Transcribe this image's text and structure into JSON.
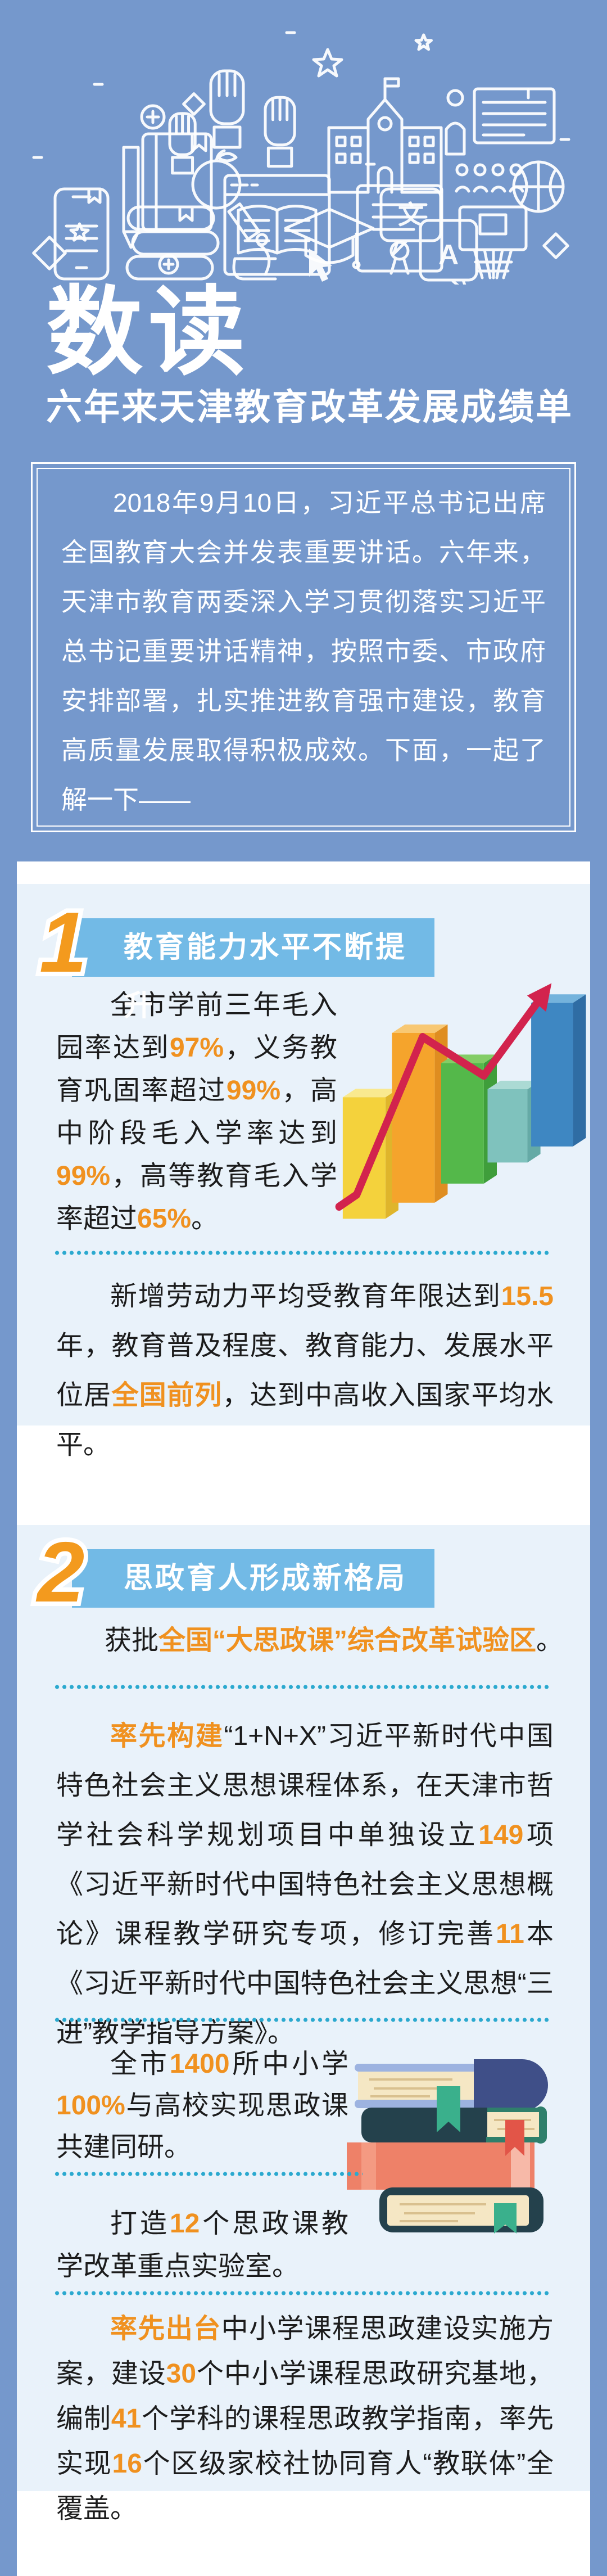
{
  "palette": {
    "banner_blue": "#7598cc",
    "card_blue": "#e9f2fa",
    "header_bar_blue": "#72bae6",
    "accent_orange": "#f0911f",
    "number_orange": "#f39a1e",
    "dot_cyan": "#2ba9cf",
    "arrow_red": "#d2234d",
    "text_dark": "#1c1c1c",
    "white": "#ffffff"
  },
  "banner": {
    "title": "数读",
    "subtitle": "六年来天津教育改革发展成绩单",
    "intro": "2018年9月10日，习近平总书记出席全国教育大会并发表重要讲话。六年来，天津市教育两委深入学习贯彻落实习近平总书记重要讲话精神，按照市委、市政府安排部署，扎实推进教育强市建设，教育高质量发展取得积极成效。下面，一起了解一下——",
    "icons_text": {
      "cjk": "文",
      "latin": "A"
    },
    "icon_names": [
      "raised-hand",
      "raised-hand",
      "raised-hand",
      "star",
      "school-building",
      "person-presentation",
      "audience",
      "plus-circle",
      "diamond",
      "pencil",
      "notebook",
      "apple",
      "browser-open-book",
      "cursor",
      "certificate",
      "smartphone",
      "book-stack",
      "microscope",
      "graduation-cap",
      "chat-bubble-cjk",
      "chat-bubble-latin",
      "basketball",
      "basketball-hoop",
      "sparkle"
    ]
  },
  "sections": [
    {
      "number": "1",
      "title": "教育能力水平不断提升",
      "stats": [
        {
          "t": "全市学前三年毛入园率达到"
        },
        {
          "t": "97%",
          "hl": true
        },
        {
          "t": "，义务教育巩固率超过"
        },
        {
          "t": "99%",
          "hl": true
        },
        {
          "t": "，高中阶段毛入学率达到"
        },
        {
          "t": "99%",
          "hl": true
        },
        {
          "t": "，高等教育毛入学率超过"
        },
        {
          "t": "65%",
          "hl": true
        },
        {
          "t": "。"
        }
      ],
      "para2": [
        {
          "t": "新增劳动力平均受教育年限达到"
        },
        {
          "t": "15.5",
          "hl": true
        },
        {
          "t": "年，教育普及程度、教育能力、发展水平位居"
        },
        {
          "t": "全国前列",
          "hl": true
        },
        {
          "t": "，达到中高收入国家平均水平。"
        }
      ],
      "illustration": {
        "type": "decorative-3d-bar-chart",
        "note": "no axis labels or values shown",
        "bar_colors": [
          "#f4d23c",
          "#f5a42c",
          "#54b84a",
          "#7fc2bd",
          "#3e87c2"
        ],
        "relative_heights": [
          "medium",
          "tallest",
          "tall",
          "short",
          "tall"
        ],
        "arrow_color": "#d2234d"
      }
    },
    {
      "number": "2",
      "title": "思政育人形成新格局",
      "paraA": [
        {
          "t": "获批"
        },
        {
          "t": "全国“大思政课”综合改革试验区",
          "hl": true
        },
        {
          "t": "。"
        }
      ],
      "paraB": [
        {
          "t": "率先构建",
          "hl": true
        },
        {
          "t": "“1+N+X”习近平新时代中国特色社会主义思想课程体系，在天津市哲学社会科学规划项目中单独设立"
        },
        {
          "t": "149",
          "hl": true
        },
        {
          "t": "项《习近平新时代中国特色社会主义思想概论》课程教学研究专项，修订完善"
        },
        {
          "t": "11",
          "hl": true
        },
        {
          "t": "本《习近平新时代中国特色社会主义思想“三进”教学指导方案》。"
        }
      ],
      "para1400": [
        {
          "t": "全市"
        },
        {
          "t": "1400",
          "hl": true
        },
        {
          "t": "所中小学"
        },
        {
          "t": "100%",
          "hl": true
        },
        {
          "t": "与高校实现思政课共建同研。"
        }
      ],
      "paraD": [
        {
          "t": "打造"
        },
        {
          "t": "12",
          "hl": true
        },
        {
          "t": "个思政课教学改革重点实验室。"
        }
      ],
      "paraE": [
        {
          "t": "率先出台",
          "hl": true
        },
        {
          "t": "中小学课程思政建设实施方案，建设"
        },
        {
          "t": "30",
          "hl": true
        },
        {
          "t": "个中小学课程思政研究基地，编制"
        },
        {
          "t": "41",
          "hl": true
        },
        {
          "t": "个学科的课程思政教学指南，率先实现"
        },
        {
          "t": "16",
          "hl": true
        },
        {
          "t": "个区级家校社协同育人“教联体”全覆盖。"
        }
      ],
      "illustration": {
        "type": "book-stack",
        "colors": [
          "#3f4f88",
          "#24414c",
          "#ee8168",
          "#f5e7c4"
        ],
        "bookmark_colors": [
          "#3ab08c",
          "#e25548"
        ]
      }
    }
  ]
}
